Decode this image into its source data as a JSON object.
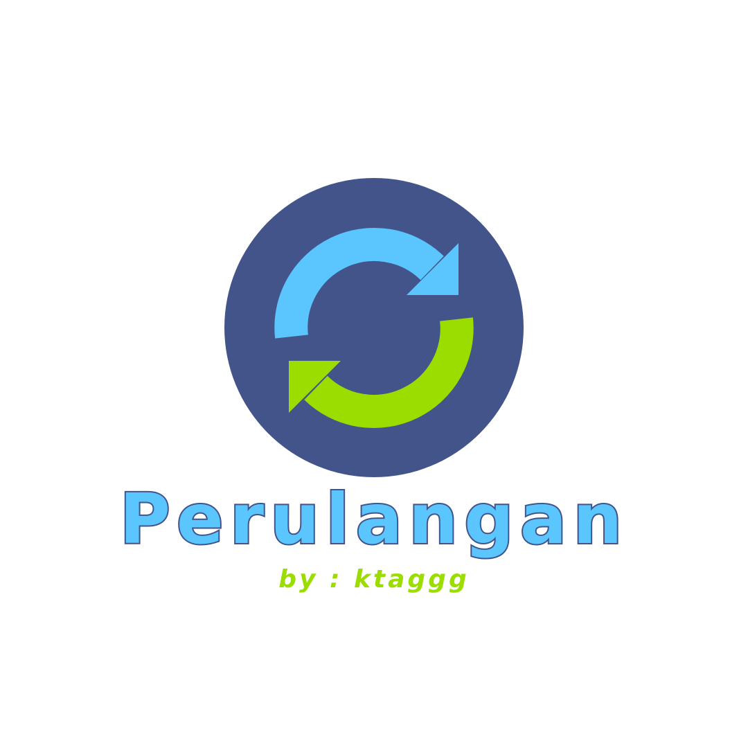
{
  "logo": {
    "icon": "refresh-arrows-icon",
    "circle_color": "#43548b",
    "top_arrow_color": "#5bc5fe",
    "bottom_arrow_color": "#9cdd00"
  },
  "title": {
    "text": "Perulangan",
    "fill_color": "#5bc5fe",
    "outline_color": "#43548b"
  },
  "subtitle": {
    "text": "by : ktaggg",
    "color": "#9cdd00"
  }
}
